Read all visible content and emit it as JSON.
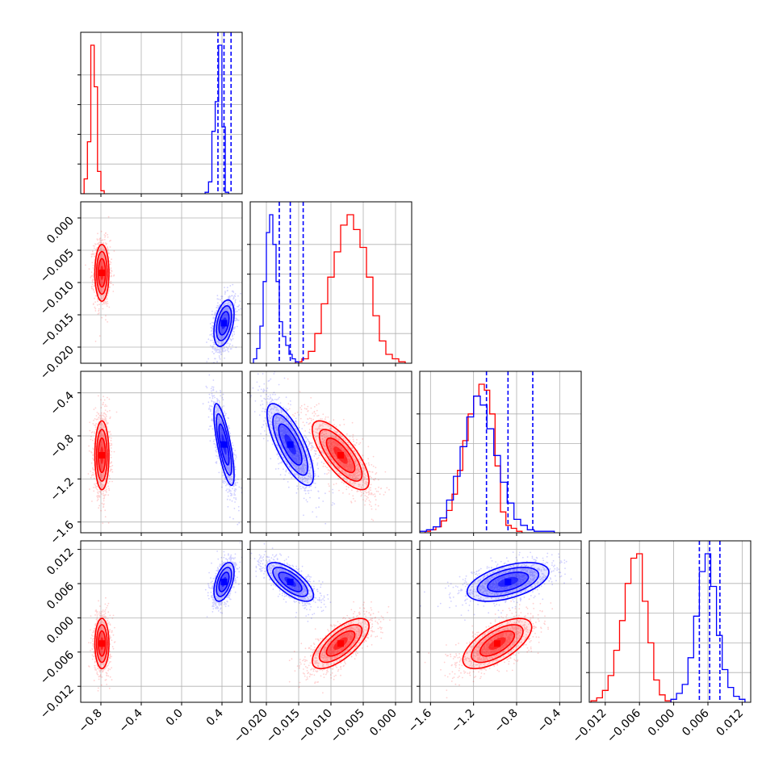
{
  "chart_data": {
    "type": "corner",
    "colors": {
      "red": "#ff0000",
      "blue": "#0000ff"
    },
    "params": [
      {
        "range": [
          -1.0,
          0.6
        ],
        "ticks": [
          -0.8,
          -0.4,
          0.0,
          0.4
        ],
        "tick_labels": [
          "−0.8",
          "−0.4",
          "0.0",
          "0.4"
        ]
      },
      {
        "range": [
          -0.0225,
          0.0025
        ],
        "ticks": [
          -0.02,
          -0.015,
          -0.01,
          -0.005,
          0.0
        ],
        "tick_labels": [
          "−0.020",
          "−0.015",
          "−0.010",
          "−0.005",
          "0.000"
        ]
      },
      {
        "range": [
          -1.7,
          -0.2
        ],
        "ticks": [
          -1.6,
          -1.2,
          -0.8,
          -0.4
        ],
        "tick_labels": [
          "−1.6",
          "−1.2",
          "−0.8",
          "−0.4"
        ]
      },
      {
        "range": [
          -0.0148,
          0.0135
        ],
        "ticks": [
          -0.012,
          -0.006,
          0.0,
          0.006,
          0.012
        ],
        "tick_labels": [
          "−0.012",
          "−0.006",
          "0.000",
          "0.006",
          "0.012"
        ]
      }
    ],
    "red": {
      "means": [
        -0.79,
        -0.0085,
        -0.98,
        -0.0045
      ],
      "sds": [
        0.035,
        0.0022,
        0.16,
        0.0022
      ],
      "corr": [
        [
          0,
          0,
          0,
          0
        ],
        [
          0,
          0,
          0,
          0
        ],
        [
          0,
          -0.75,
          0,
          0
        ],
        [
          0,
          0.7,
          0.65,
          0
        ]
      ]
    },
    "blue": {
      "means": [
        0.42,
        -0.0163,
        -0.88,
        0.0063
      ],
      "sds": [
        0.05,
        0.0018,
        0.19,
        0.0017
      ],
      "corr": [
        [
          0,
          0,
          0,
          0
        ],
        [
          0.4,
          0,
          0,
          0
        ],
        [
          -0.75,
          -0.75,
          0,
          0
        ],
        [
          0.5,
          -0.7,
          0.5,
          0
        ]
      ]
    },
    "quantiles": {
      "blue": [
        [
          0.36,
          0.42,
          0.49
        ],
        [
          -0.018,
          -0.0163,
          -0.0143
        ],
        [
          -1.08,
          -0.88,
          -0.65
        ],
        [
          0.0045,
          0.0063,
          0.0081
        ]
      ]
    },
    "histograms": {
      "p0_red": {
        "edges_start": -1.0,
        "bin_width": 0.0333,
        "counts": [
          0,
          0.1,
          0.35,
          1.0,
          0.72,
          0.15,
          0.02
        ]
      },
      "p0_blue": {
        "edges_start": 0.233,
        "bin_width": 0.0333,
        "counts": [
          0.01,
          0.08,
          0.42,
          0.62,
          1.0,
          0.45,
          0.01
        ]
      },
      "p1_red": {
        "edges_start": -0.0155,
        "bin_width": 0.001,
        "counts": [
          0.01,
          0.03,
          0.08,
          0.2,
          0.4,
          0.58,
          0.75,
          0.93,
          1.0,
          0.9,
          0.78,
          0.58,
          0.32,
          0.15,
          0.06,
          0.03,
          0.01
        ]
      },
      "p1_blue": {
        "edges_start": -0.022,
        "bin_width": 0.0005,
        "counts": [
          0.03,
          0.1,
          0.25,
          0.55,
          0.88,
          1.0,
          0.8,
          0.55,
          0.28,
          0.18,
          0.12,
          0.06,
          0.03,
          0.01
        ]
      },
      "p2_red": {
        "edges_start": -1.65,
        "bin_width": 0.05,
        "counts": [
          0.01,
          0.02,
          0.04,
          0.08,
          0.15,
          0.26,
          0.42,
          0.62,
          0.8,
          0.92,
          1.0,
          0.96,
          0.8,
          0.45,
          0.14,
          0.05,
          0.03,
          0.01
        ]
      },
      "p2_blue": {
        "edges_start": -1.7,
        "bin_width": 0.0625,
        "counts": [
          0.01,
          0.02,
          0.04,
          0.1,
          0.22,
          0.38,
          0.58,
          0.78,
          0.92,
          0.86,
          0.7,
          0.52,
          0.34,
          0.2,
          0.09,
          0.05,
          0.02,
          0.01,
          0.01,
          0.01
        ]
      },
      "p3_red": {
        "edges_start": -0.0145,
        "bin_width": 0.001,
        "counts": [
          0.01,
          0.03,
          0.08,
          0.18,
          0.35,
          0.55,
          0.8,
          0.97,
          1.0,
          0.68,
          0.4,
          0.15,
          0.05,
          0.01
        ]
      },
      "p3_blue": {
        "edges_start": -0.0005,
        "bin_width": 0.001,
        "counts": [
          0.02,
          0.06,
          0.12,
          0.3,
          0.58,
          0.88,
          1.0,
          0.78,
          0.45,
          0.22,
          0.1,
          0.04,
          0.02
        ]
      }
    }
  }
}
